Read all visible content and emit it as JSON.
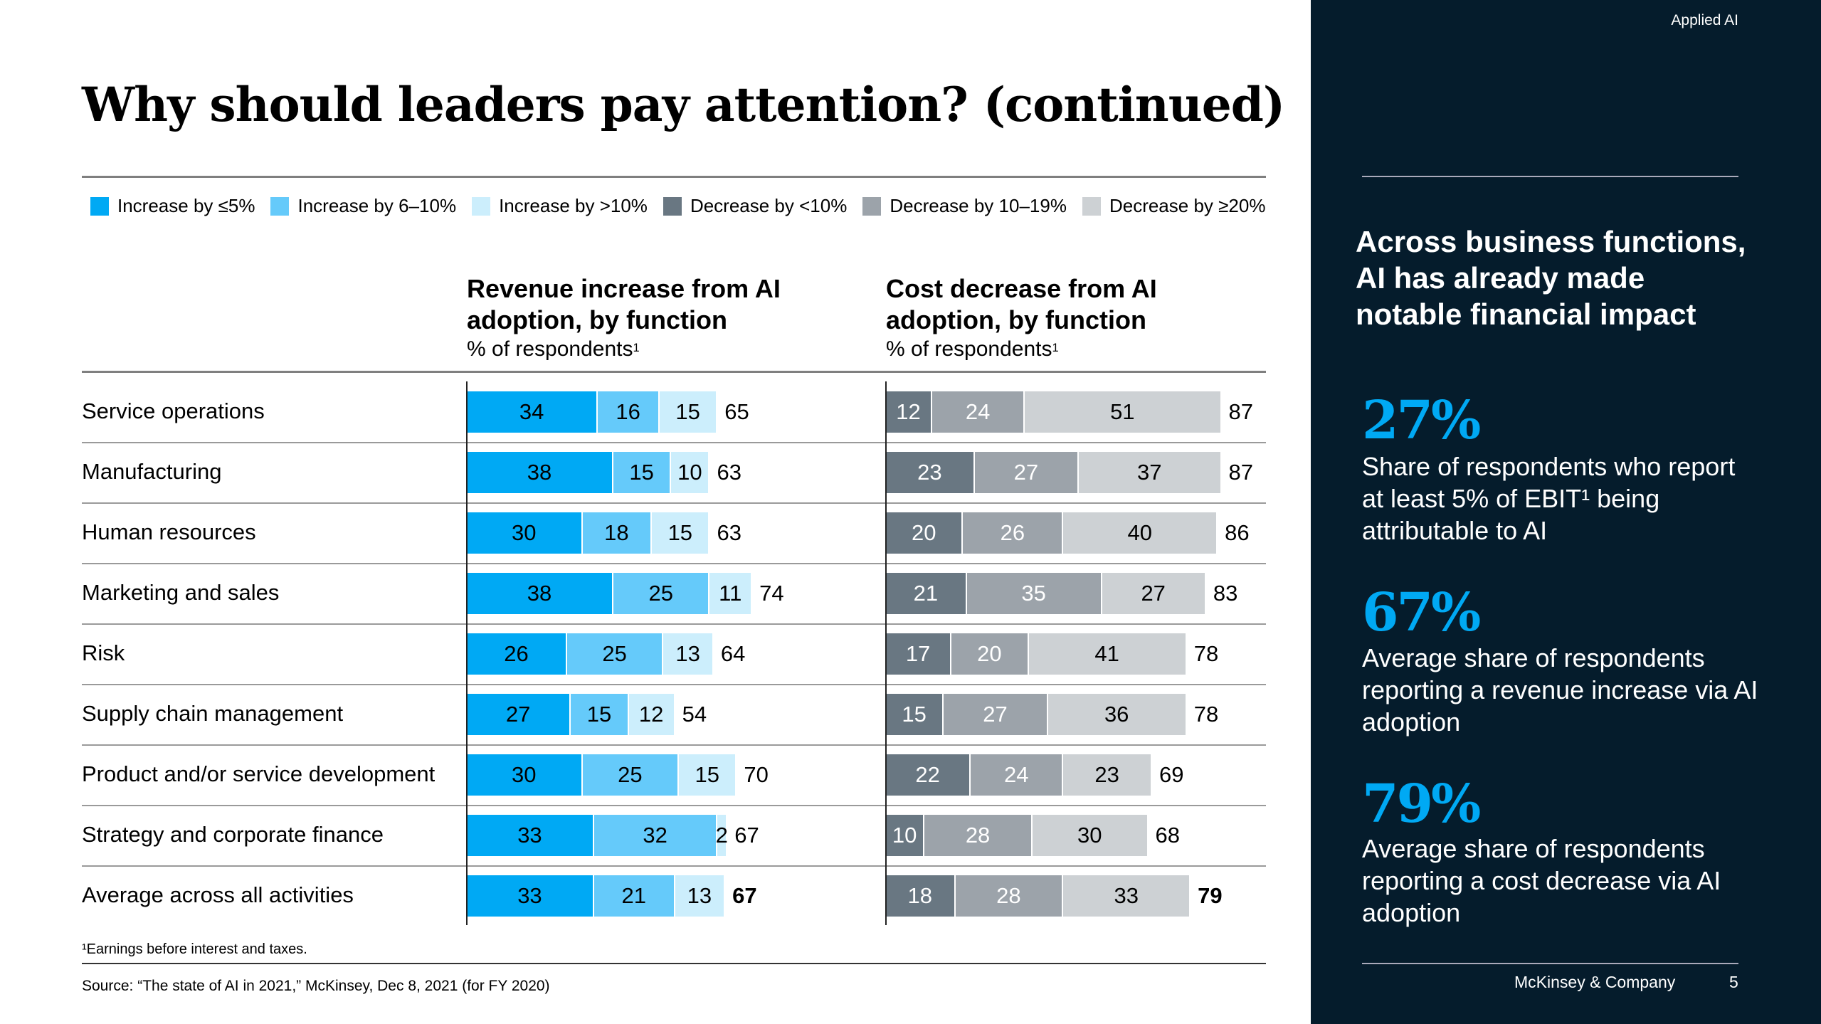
{
  "title": "Why should leaders pay attention? (continued)",
  "legend": [
    {
      "label": "Increase by ≤5%",
      "color": "#00A9F4"
    },
    {
      "label": "Increase by 6–10%",
      "color": "#65CAFA"
    },
    {
      "label": "Increase by >10%",
      "color": "#CCEEFC"
    },
    {
      "label": "Decrease by <10%",
      "color": "#697782"
    },
    {
      "label": "Decrease by 10–19%",
      "color": "#9CA3AA"
    },
    {
      "label": "Decrease by ≥20%",
      "color": "#CDD1D4"
    }
  ],
  "revenue_header": {
    "title": "Revenue increase from AI adoption, by function",
    "sub": "% of respondents",
    "sup": "1"
  },
  "cost_header": {
    "title": "Cost decrease from AI adoption, by function",
    "sub": "% of respondents",
    "sup": "1"
  },
  "chart_data": {
    "type": "bar",
    "stacked": true,
    "orientation": "horizontal",
    "categories": [
      "Service operations",
      "Manufacturing",
      "Human resources",
      "Marketing and sales",
      "Risk",
      "Supply chain management",
      "Product and/or service development",
      "Strategy and corporate finance",
      "Average across all activities"
    ],
    "revenue": {
      "series": [
        {
          "name": "Increase by ≤5%",
          "values": [
            34,
            38,
            30,
            38,
            26,
            27,
            30,
            33,
            33
          ]
        },
        {
          "name": "Increase by 6–10%",
          "values": [
            16,
            15,
            18,
            25,
            25,
            15,
            25,
            32,
            21
          ]
        },
        {
          "name": "Increase by >10%",
          "values": [
            15,
            10,
            15,
            11,
            13,
            12,
            15,
            2,
            13
          ]
        }
      ],
      "totals": [
        65,
        63,
        63,
        74,
        64,
        54,
        70,
        67,
        67
      ]
    },
    "cost": {
      "series": [
        {
          "name": "Decrease by <10%",
          "values": [
            12,
            23,
            20,
            21,
            17,
            15,
            22,
            10,
            18
          ]
        },
        {
          "name": "Decrease by 10–19%",
          "values": [
            24,
            27,
            26,
            35,
            20,
            27,
            24,
            28,
            28
          ]
        },
        {
          "name": "Decrease by ≥20%",
          "values": [
            51,
            37,
            40,
            27,
            41,
            36,
            23,
            30,
            33
          ]
        }
      ],
      "totals": [
        87,
        87,
        86,
        83,
        78,
        78,
        69,
        68,
        79
      ]
    }
  },
  "footnote": "¹Earnings before interest and taxes.",
  "source": "Source: “The state of AI in 2021,” McKinsey, Dec 8, 2021 (for FY 2020)",
  "panel": {
    "section": "Applied AI",
    "heading": "Across business functions, AI has already made notable financial impact",
    "stats": [
      {
        "value": "27%",
        "text": "Share of respondents who report at least 5% of EBIT¹ being attributable to AI"
      },
      {
        "value": "67%",
        "text": "Average share of respondents reporting a revenue increase via AI adoption"
      },
      {
        "value": "79%",
        "text": "Average share of respondents reporting a cost decrease via AI adoption"
      }
    ],
    "brand": "McKinsey & Company",
    "page": "5"
  }
}
